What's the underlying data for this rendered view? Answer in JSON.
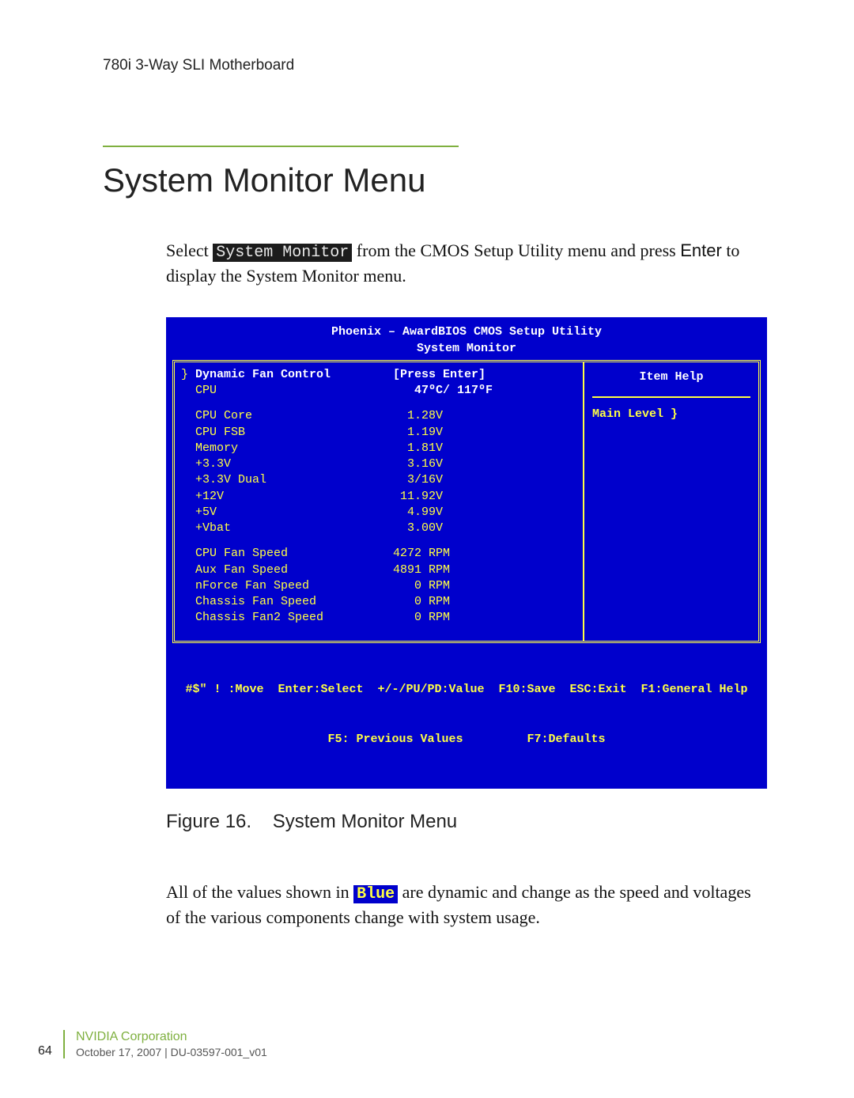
{
  "header": {
    "product": "780i 3-Way SLI Motherboard"
  },
  "section": {
    "title": "System Monitor Menu",
    "intro_pre": "Select ",
    "intro_code": "System Monitor",
    "intro_mid": " from the CMOS Setup Utility menu and press ",
    "intro_enter": "Enter",
    "intro_post": " to display the System Monitor menu."
  },
  "bios": {
    "header1": "Phoenix – AwardBIOS CMOS Setup Utility",
    "header2": "System Monitor",
    "item_help": "Item Help",
    "main_level": "Main Level    }",
    "cursor": "}",
    "rows_top": [
      {
        "label": "Dynamic Fan Control",
        "value": "[Press Enter]",
        "white_value": true,
        "white_label": true
      },
      {
        "label": "CPU",
        "value": "   47ºC/ 117ºF",
        "white_value": true
      }
    ],
    "rows_volt": [
      {
        "label": "CPU Core",
        "value": "  1.28V"
      },
      {
        "label": "CPU FSB",
        "value": "  1.19V"
      },
      {
        "label": "Memory",
        "value": "  1.81V"
      },
      {
        "label": "+3.3V",
        "value": "  3.16V"
      },
      {
        "label": "+3.3V Dual",
        "value": "  3/16V"
      },
      {
        "label": "+12V",
        "value": " 11.92V"
      },
      {
        "label": "+5V",
        "value": "  4.99V"
      },
      {
        "label": "+Vbat",
        "value": "  3.00V"
      }
    ],
    "rows_fan": [
      {
        "label": "CPU Fan Speed",
        "value": "4272 RPM"
      },
      {
        "label": "Aux Fan Speed",
        "value": "4891 RPM"
      },
      {
        "label": "nForce Fan Speed",
        "value": "   0 RPM"
      },
      {
        "label": "Chassis Fan Speed",
        "value": "   0 RPM"
      },
      {
        "label": "Chassis Fan2 Speed",
        "value": "   0 RPM"
      }
    ],
    "footer1": "#$\" ! :Move  Enter:Select  +/-/PU/PD:Value  F10:Save  ESC:Exit  F1:General Help",
    "footer2": "F5: Previous Values         F7:Defaults"
  },
  "figure": {
    "caption_num": "Figure 16.",
    "caption_text": "System Monitor Menu"
  },
  "note": {
    "pre": "All of the values shown in ",
    "blue": "Blue",
    "post": " are dynamic and change as the speed and voltages of the various components change with system usage."
  },
  "footer": {
    "corp": "NVIDIA Corporation",
    "date": "October 17, 2007  |  DU-03597-001_v01",
    "page": "64"
  }
}
